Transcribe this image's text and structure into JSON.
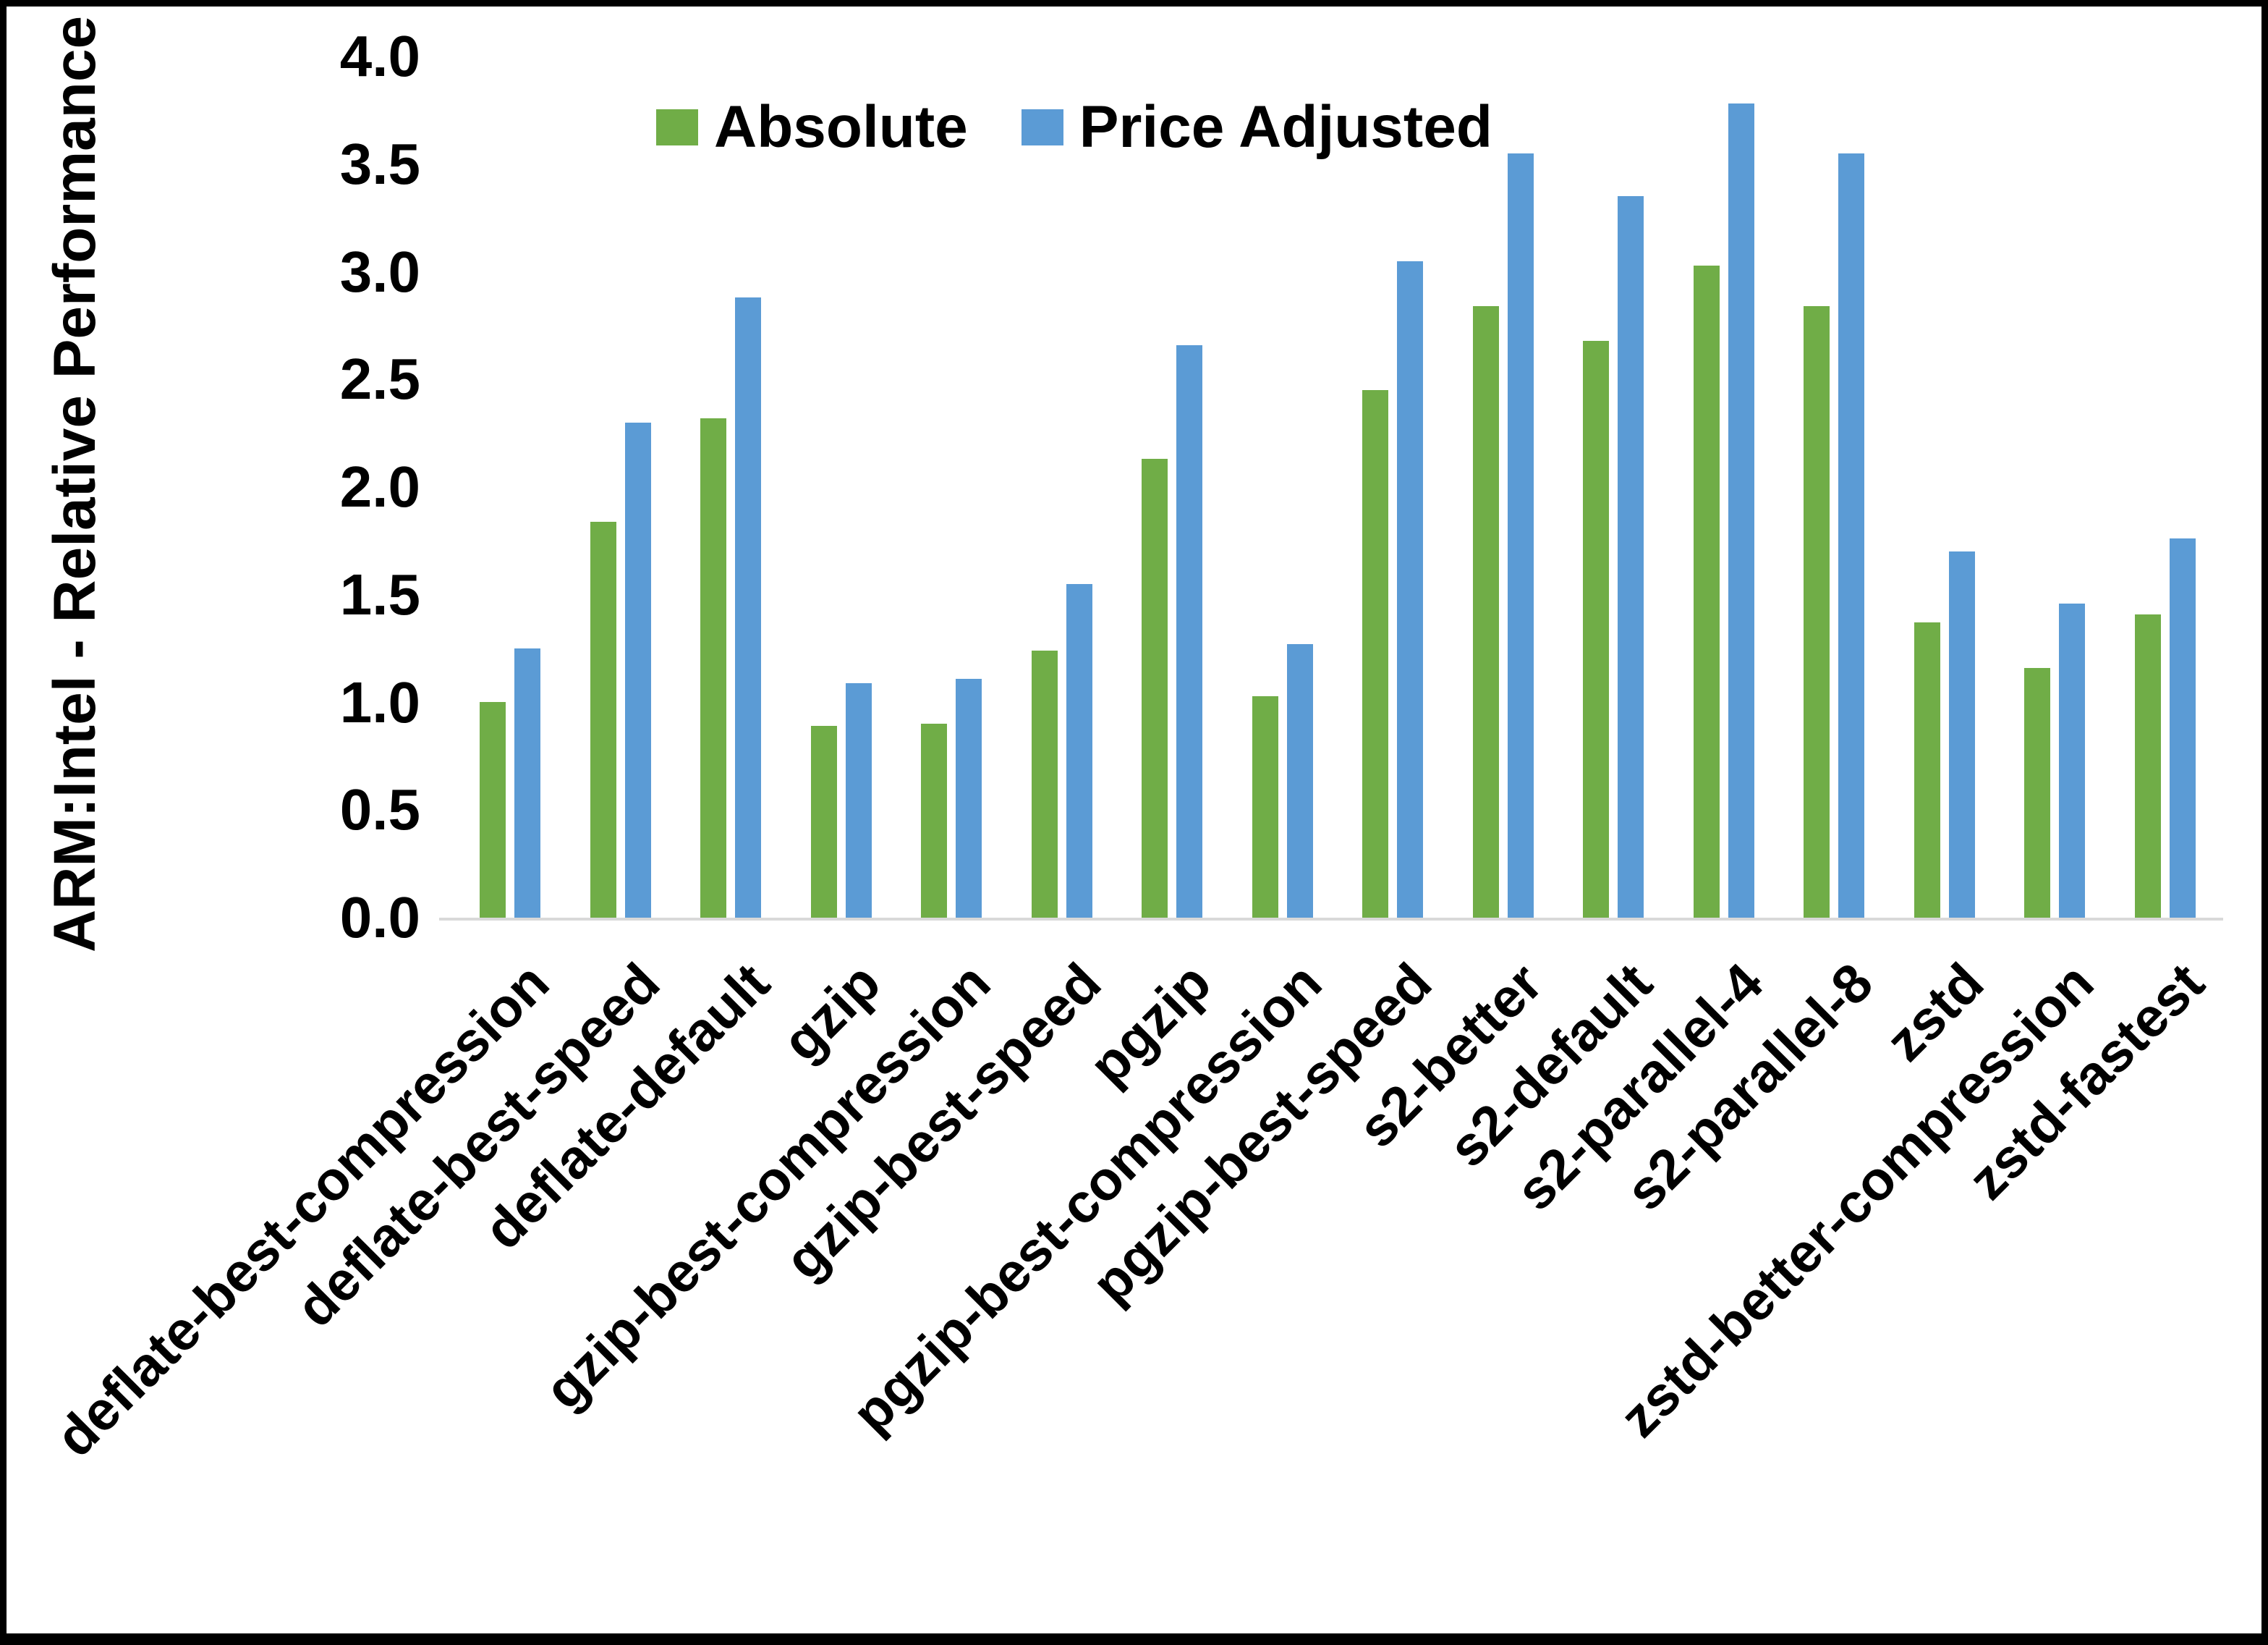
{
  "figure": {
    "background_color": "#ffffff",
    "frame_color": "#000000",
    "axis_line_color": "#d9d9d9"
  },
  "legend": {
    "items": [
      {
        "label": "Absolute",
        "color": "#70AD47"
      },
      {
        "label": "Price Adjusted",
        "color": "#5B9BD5"
      }
    ]
  },
  "chart_data": {
    "type": "bar",
    "title": "",
    "xlabel": "",
    "ylabel": "ARM:Intel - Relative Performance",
    "ylim": [
      0.0,
      4.0
    ],
    "ytick_step": 0.5,
    "ytick_labels": [
      "0.0",
      "0.5",
      "1.0",
      "1.5",
      "2.0",
      "2.5",
      "3.0",
      "3.5",
      "4.0"
    ],
    "grid": false,
    "legend_position": "top-center",
    "categories": [
      "deflate-best-compression",
      "deflate-best-speed",
      "deflate-default",
      "gzip",
      "gzip-best-compression",
      "gzip-best-speed",
      "pgzip",
      "pgzip-best-compression",
      "pgzip-best-speed",
      "s2-better",
      "s2-default",
      "s2-parallel-4",
      "s2-parallel-8",
      "zstd",
      "zstd-better-compression",
      "zstd-fastest"
    ],
    "series": [
      {
        "name": "Absolute",
        "color": "#70AD47",
        "values": [
          1.0,
          1.84,
          2.32,
          0.89,
          0.9,
          1.24,
          2.13,
          1.03,
          2.45,
          2.84,
          2.68,
          3.03,
          2.84,
          1.37,
          1.16,
          1.41
        ]
      },
      {
        "name": "Price Adjusted",
        "color": "#5B9BD5",
        "values": [
          1.25,
          2.3,
          2.88,
          1.09,
          1.11,
          1.55,
          2.66,
          1.27,
          3.05,
          3.55,
          3.35,
          3.78,
          3.55,
          1.7,
          1.46,
          1.76
        ]
      }
    ]
  }
}
